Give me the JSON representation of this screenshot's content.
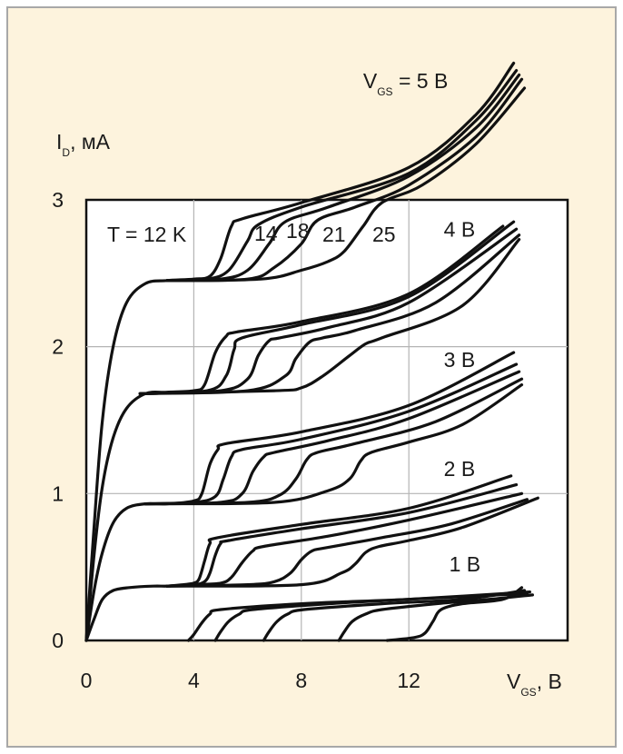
{
  "colors": {
    "page_background": "#fdf3dd",
    "frame_border": "#a8a8a8",
    "plot_background": "#ffffff",
    "grid": "#b4b4b4",
    "curve": "#111111"
  },
  "chart_data": {
    "type": "line",
    "title": "",
    "xlabel": {
      "main": "V",
      "sub": "GS",
      "unit": ", В"
    },
    "ylabel": {
      "main": "I",
      "sub": "D",
      "unit": ", мА"
    },
    "xlim": [
      0,
      16
    ],
    "ylim": [
      0,
      3
    ],
    "x_ticks": [
      0,
      4,
      8,
      12
    ],
    "y_ticks": [
      0,
      1,
      2,
      3
    ],
    "grid": true,
    "annotations": {
      "temperature": "T = 12 K",
      "curve_labels": [
        "14",
        "18",
        "21",
        "25"
      ]
    },
    "families": [
      {
        "label": "1 В",
        "label_x": 13.5,
        "label_y": 0.47,
        "curves": [
          [
            [
              3.8,
              0.0
            ],
            [
              4.0,
              0.04
            ],
            [
              4.3,
              0.12
            ],
            [
              4.6,
              0.18
            ],
            [
              5.0,
              0.21
            ],
            [
              8,
              0.25
            ],
            [
              12,
              0.28
            ],
            [
              16.4,
              0.32
            ]
          ],
          [
            [
              4.8,
              0.0
            ],
            [
              5.0,
              0.06
            ],
            [
              5.3,
              0.13
            ],
            [
              5.7,
              0.18
            ],
            [
              6.2,
              0.21
            ],
            [
              9,
              0.25
            ],
            [
              12,
              0.28
            ],
            [
              16.5,
              0.33
            ]
          ],
          [
            [
              6.6,
              0.0
            ],
            [
              6.8,
              0.06
            ],
            [
              7.1,
              0.13
            ],
            [
              7.5,
              0.18
            ],
            [
              8.1,
              0.21
            ],
            [
              11,
              0.25
            ],
            [
              14,
              0.28
            ],
            [
              16.3,
              0.34
            ]
          ],
          [
            [
              9.4,
              0.0
            ],
            [
              9.6,
              0.06
            ],
            [
              9.9,
              0.13
            ],
            [
              10.4,
              0.18
            ],
            [
              11,
              0.21
            ],
            [
              13,
              0.25
            ],
            [
              15,
              0.28
            ],
            [
              16.6,
              0.31
            ]
          ],
          [
            [
              11.2,
              0.0
            ],
            [
              12.2,
              0.02
            ],
            [
              12.6,
              0.05
            ],
            [
              12.9,
              0.13
            ],
            [
              13.2,
              0.21
            ],
            [
              14,
              0.25
            ],
            [
              15.5,
              0.28
            ],
            [
              16.2,
              0.36
            ]
          ]
        ]
      },
      {
        "label": "2 В",
        "label_x": 13.3,
        "label_y": 1.12,
        "curves": [
          [
            [
              0,
              0
            ],
            [
              0.3,
              0.15
            ],
            [
              0.6,
              0.28
            ],
            [
              1,
              0.34
            ],
            [
              1.6,
              0.36
            ],
            [
              2.5,
              0.37
            ],
            [
              3,
              0.37
            ],
            [
              3.6,
              0.38
            ],
            [
              4,
              0.39
            ],
            [
              4.2,
              0.42
            ],
            [
              4.4,
              0.54
            ],
            [
              4.6,
              0.66
            ],
            [
              4.9,
              0.7
            ],
            [
              8,
              0.79
            ],
            [
              12,
              0.9
            ],
            [
              15.8,
              1.12
            ]
          ],
          [
            [
              3.0,
              0.37
            ],
            [
              4.0,
              0.38
            ],
            [
              4.4,
              0.4
            ],
            [
              4.6,
              0.46
            ],
            [
              4.8,
              0.58
            ],
            [
              5.0,
              0.66
            ],
            [
              5.3,
              0.68
            ],
            [
              8,
              0.76
            ],
            [
              12,
              0.87
            ],
            [
              16,
              1.06
            ]
          ],
          [
            [
              3.0,
              0.37
            ],
            [
              4.0,
              0.38
            ],
            [
              5.0,
              0.39
            ],
            [
              5.4,
              0.43
            ],
            [
              5.8,
              0.53
            ],
            [
              6.2,
              0.61
            ],
            [
              6.6,
              0.64
            ],
            [
              9,
              0.71
            ],
            [
              12,
              0.82
            ],
            [
              16.2,
              1.0
            ]
          ],
          [
            [
              3.0,
              0.37
            ],
            [
              6.0,
              0.38
            ],
            [
              7.0,
              0.4
            ],
            [
              7.6,
              0.46
            ],
            [
              8.0,
              0.55
            ],
            [
              8.4,
              0.61
            ],
            [
              8.9,
              0.63
            ],
            [
              11,
              0.7
            ],
            [
              13.5,
              0.79
            ],
            [
              16.4,
              0.96
            ]
          ],
          [
            [
              3.0,
              0.37
            ],
            [
              8.0,
              0.38
            ],
            [
              9.5,
              0.46
            ],
            [
              10.0,
              0.52
            ],
            [
              10.4,
              0.6
            ],
            [
              10.9,
              0.64
            ],
            [
              12,
              0.68
            ],
            [
              14,
              0.77
            ],
            [
              16.8,
              0.97
            ]
          ]
        ]
      },
      {
        "label": "3 В",
        "label_x": 13.3,
        "label_y": 1.86,
        "curves": [
          [
            [
              0,
              0
            ],
            [
              0.3,
              0.35
            ],
            [
              0.6,
              0.6
            ],
            [
              1.0,
              0.8
            ],
            [
              1.5,
              0.9
            ],
            [
              2.2,
              0.93
            ],
            [
              3,
              0.93
            ],
            [
              4,
              0.95
            ],
            [
              4.3,
              1.0
            ],
            [
              4.6,
              1.2
            ],
            [
              4.9,
              1.3
            ],
            [
              5.2,
              1.34
            ],
            [
              8,
              1.42
            ],
            [
              12,
              1.6
            ],
            [
              15.9,
              1.96
            ]
          ],
          [
            [
              2.2,
              0.93
            ],
            [
              4.0,
              0.94
            ],
            [
              4.8,
              0.98
            ],
            [
              5.1,
              1.1
            ],
            [
              5.4,
              1.25
            ],
            [
              5.8,
              1.3
            ],
            [
              8,
              1.37
            ],
            [
              12,
              1.56
            ],
            [
              16,
              1.88
            ]
          ],
          [
            [
              2.2,
              0.93
            ],
            [
              5.0,
              0.94
            ],
            [
              5.8,
              1.0
            ],
            [
              6.2,
              1.15
            ],
            [
              6.6,
              1.25
            ],
            [
              7.0,
              1.28
            ],
            [
              9,
              1.36
            ],
            [
              12,
              1.51
            ],
            [
              16.1,
              1.83
            ]
          ],
          [
            [
              2.2,
              0.93
            ],
            [
              6.0,
              0.94
            ],
            [
              7.2,
              0.99
            ],
            [
              7.8,
              1.1
            ],
            [
              8.2,
              1.23
            ],
            [
              8.6,
              1.28
            ],
            [
              10,
              1.34
            ],
            [
              13,
              1.49
            ],
            [
              16.2,
              1.78
            ]
          ],
          [
            [
              2.2,
              0.93
            ],
            [
              7.0,
              0.94
            ],
            [
              9.0,
              1.02
            ],
            [
              9.8,
              1.1
            ],
            [
              10.2,
              1.22
            ],
            [
              10.6,
              1.28
            ],
            [
              12,
              1.35
            ],
            [
              14,
              1.47
            ],
            [
              16.2,
              1.74
            ]
          ]
        ]
      },
      {
        "label": "4 В",
        "label_x": 13.3,
        "label_y": 2.75,
        "curves": [
          [
            [
              0,
              0
            ],
            [
              0.3,
              0.6
            ],
            [
              0.6,
              1.05
            ],
            [
              1.0,
              1.38
            ],
            [
              1.5,
              1.58
            ],
            [
              2.2,
              1.68
            ],
            [
              3,
              1.69
            ],
            [
              4,
              1.7
            ],
            [
              4.4,
              1.74
            ],
            [
              4.8,
              1.96
            ],
            [
              5.2,
              2.07
            ],
            [
              5.6,
              2.1
            ],
            [
              8,
              2.17
            ],
            [
              12,
              2.36
            ],
            [
              15.5,
              2.82
            ]
          ],
          [
            [
              2.0,
              1.68
            ],
            [
              4.5,
              1.7
            ],
            [
              5.2,
              1.8
            ],
            [
              5.5,
              1.98
            ],
            [
              5.8,
              2.06
            ],
            [
              8,
              2.15
            ],
            [
              12,
              2.34
            ],
            [
              15.9,
              2.85
            ]
          ],
          [
            [
              2.0,
              1.68
            ],
            [
              5.0,
              1.7
            ],
            [
              6.0,
              1.78
            ],
            [
              6.4,
              1.94
            ],
            [
              6.8,
              2.04
            ],
            [
              7.2,
              2.06
            ],
            [
              9,
              2.13
            ],
            [
              12,
              2.3
            ],
            [
              16.0,
              2.8
            ]
          ],
          [
            [
              2.0,
              1.68
            ],
            [
              6.0,
              1.7
            ],
            [
              7.4,
              1.8
            ],
            [
              7.8,
              1.92
            ],
            [
              8.3,
              2.03
            ],
            [
              8.8,
              2.06
            ],
            [
              10,
              2.11
            ],
            [
              13,
              2.3
            ],
            [
              16.1,
              2.76
            ]
          ],
          [
            [
              2.0,
              1.68
            ],
            [
              7.0,
              1.7
            ],
            [
              8.0,
              1.72
            ],
            [
              8.8,
              1.8
            ],
            [
              9.8,
              1.94
            ],
            [
              10.4,
              2.02
            ],
            [
              11,
              2.06
            ],
            [
              14,
              2.28
            ],
            [
              16.1,
              2.73
            ]
          ]
        ]
      },
      {
        "label": "V_GS = 5 В",
        "label_x": 10.3,
        "label_y": 3.76,
        "curves": [
          [
            [
              0,
              0
            ],
            [
              0.3,
              0.8
            ],
            [
              0.6,
              1.5
            ],
            [
              1.0,
              2.0
            ],
            [
              1.5,
              2.3
            ],
            [
              2.2,
              2.43
            ],
            [
              3,
              2.45
            ],
            [
              4,
              2.46
            ],
            [
              4.6,
              2.48
            ],
            [
              5.0,
              2.6
            ],
            [
              5.4,
              2.82
            ],
            [
              5.8,
              2.87
            ],
            [
              8,
              2.98
            ],
            [
              12,
              3.22
            ],
            [
              14.5,
              3.58
            ],
            [
              15.9,
              3.93
            ]
          ],
          [
            [
              3.0,
              2.45
            ],
            [
              4.5,
              2.46
            ],
            [
              5.3,
              2.52
            ],
            [
              6.0,
              2.72
            ],
            [
              6.4,
              2.83
            ],
            [
              8,
              2.95
            ],
            [
              12,
              3.18
            ],
            [
              14.5,
              3.54
            ],
            [
              16.0,
              3.88
            ]
          ],
          [
            [
              3.0,
              2.45
            ],
            [
              5.0,
              2.46
            ],
            [
              6.0,
              2.52
            ],
            [
              6.8,
              2.7
            ],
            [
              7.4,
              2.85
            ],
            [
              9,
              2.95
            ],
            [
              12,
              3.16
            ],
            [
              14.5,
              3.49
            ],
            [
              16.1,
              3.85
            ]
          ],
          [
            [
              3.0,
              2.45
            ],
            [
              6.0,
              2.46
            ],
            [
              7.0,
              2.54
            ],
            [
              8.0,
              2.7
            ],
            [
              8.6,
              2.86
            ],
            [
              10,
              2.95
            ],
            [
              12,
              3.1
            ],
            [
              14.5,
              3.43
            ],
            [
              16.2,
              3.82
            ]
          ],
          [
            [
              3.0,
              2.45
            ],
            [
              6.5,
              2.46
            ],
            [
              8.0,
              2.52
            ],
            [
              9.0,
              2.58
            ],
            [
              9.6,
              2.65
            ],
            [
              10.3,
              2.82
            ],
            [
              11,
              2.98
            ],
            [
              12.5,
              3.1
            ],
            [
              14.5,
              3.38
            ],
            [
              16.3,
              3.76
            ]
          ]
        ]
      }
    ]
  }
}
